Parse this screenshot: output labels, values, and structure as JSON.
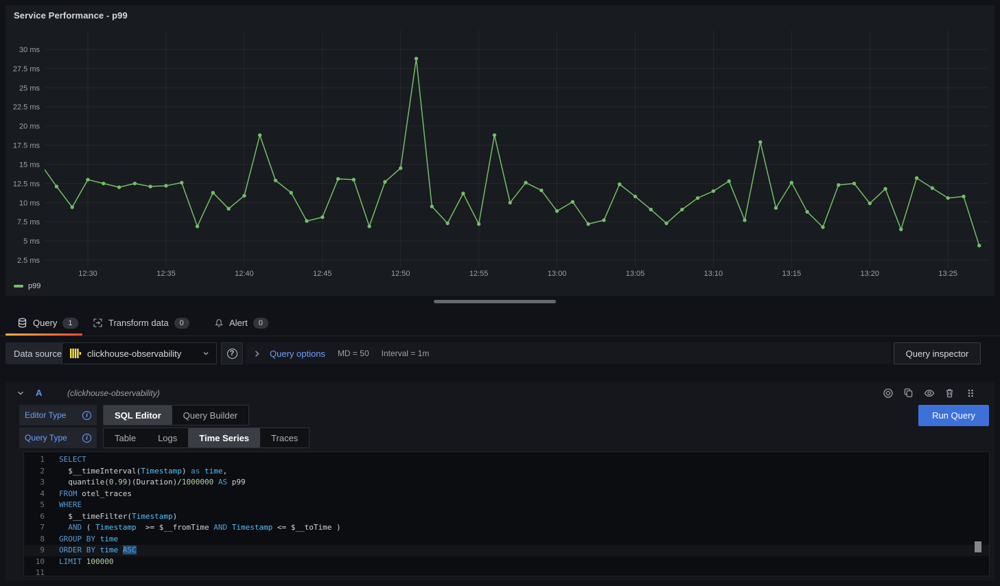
{
  "panel": {
    "title": "Service Performance - p99"
  },
  "chart_data": {
    "type": "line",
    "title": "Service Performance - p99",
    "y_unit": "ms",
    "grid": true,
    "legend_position": "bottom-left",
    "ylim": [
      1.8,
      31.5
    ],
    "y_ticks": [
      2.5,
      5,
      7.5,
      10,
      12.5,
      15,
      17.5,
      20,
      22.5,
      25,
      27.5,
      30
    ],
    "x_tick_labels": [
      "12:30",
      "12:35",
      "12:40",
      "12:45",
      "12:50",
      "12:55",
      "13:00",
      "13:05",
      "13:10",
      "13:15",
      "13:20",
      "13:25"
    ],
    "x": [
      "12:27",
      "12:28",
      "12:29",
      "12:30",
      "12:31",
      "12:32",
      "12:33",
      "12:34",
      "12:35",
      "12:36",
      "12:37",
      "12:38",
      "12:39",
      "12:40",
      "12:41",
      "12:42",
      "12:43",
      "12:44",
      "12:45",
      "12:46",
      "12:47",
      "12:48",
      "12:49",
      "12:50",
      "12:51",
      "12:52",
      "12:53",
      "12:54",
      "12:55",
      "12:56",
      "12:57",
      "12:58",
      "12:59",
      "13:00",
      "13:01",
      "13:02",
      "13:03",
      "13:04",
      "13:05",
      "13:06",
      "13:07",
      "13:08",
      "13:09",
      "13:10",
      "13:11",
      "13:12",
      "13:13",
      "13:14",
      "13:15",
      "13:16",
      "13:17",
      "13:18",
      "13:19",
      "13:20",
      "13:21",
      "13:22",
      "13:23",
      "13:24",
      "13:25",
      "13:26",
      "13:27"
    ],
    "series": [
      {
        "name": "p99",
        "color": "#73BF69",
        "values": [
          15.0,
          12.1,
          9.4,
          13.0,
          12.5,
          12.0,
          12.5,
          12.1,
          12.2,
          12.6,
          6.9,
          11.3,
          9.2,
          10.9,
          18.8,
          12.9,
          11.3,
          7.6,
          8.1,
          13.1,
          13.0,
          6.9,
          12.7,
          14.5,
          28.8,
          9.5,
          7.3,
          11.2,
          7.2,
          18.8,
          10.0,
          12.6,
          11.6,
          8.9,
          10.1,
          7.2,
          7.7,
          12.4,
          10.8,
          9.1,
          7.3,
          9.1,
          10.6,
          11.5,
          12.8,
          7.7,
          17.9,
          9.3,
          12.6,
          8.8,
          6.8,
          12.3,
          12.5,
          9.9,
          11.8,
          6.5,
          13.2,
          11.9,
          10.6,
          10.8,
          4.4
        ]
      }
    ]
  },
  "tabs": [
    {
      "label": "Query",
      "count": "1"
    },
    {
      "label": "Transform data",
      "count": "0"
    },
    {
      "label": "Alert",
      "count": "0"
    }
  ],
  "toolbar": {
    "datasource_label": "Data source",
    "datasource_value": "clickhouse-observability",
    "query_options_label": "Query options",
    "md": "MD = 50",
    "interval": "Interval = 1m",
    "inspector_label": "Query inspector"
  },
  "query_row": {
    "ref_id": "A",
    "datasource_hint": "(clickhouse-observability)"
  },
  "controls": {
    "editor_type_label": "Editor Type",
    "editor_types": [
      "SQL Editor",
      "Query Builder"
    ],
    "editor_type_active": "SQL Editor",
    "query_type_label": "Query Type",
    "query_types": [
      "Table",
      "Logs",
      "Time Series",
      "Traces"
    ],
    "query_type_active": "Time Series",
    "run_label": "Run Query"
  },
  "colors": {
    "accent_blue": "#3D71D9",
    "link_blue": "#6E9FFF",
    "series_green": "#73BF69",
    "tab_active_orange": "#EC4B34",
    "clickhouse_yellow": "#F5E242"
  },
  "sql_editor": {
    "lines": [
      {
        "n": "1",
        "tokens": [
          [
            "SELECT",
            "k"
          ]
        ]
      },
      {
        "n": "2",
        "tokens": [
          [
            "  $__timeInterval(",
            "p"
          ],
          [
            "Timestamp",
            "t"
          ],
          [
            ") ",
            "p"
          ],
          [
            "as",
            "k"
          ],
          [
            " ",
            "p"
          ],
          [
            "time",
            "t"
          ],
          [
            ",",
            "p"
          ]
        ]
      },
      {
        "n": "3",
        "tokens": [
          [
            "  quantile(",
            "p"
          ],
          [
            "0.99",
            "n"
          ],
          [
            ")(Duration)/",
            "p"
          ],
          [
            "1000000",
            "n"
          ],
          [
            " ",
            "p"
          ],
          [
            "AS",
            "k"
          ],
          [
            " p99",
            "p"
          ]
        ]
      },
      {
        "n": "4",
        "tokens": [
          [
            "FROM",
            "k"
          ],
          [
            " otel_traces",
            "p"
          ]
        ]
      },
      {
        "n": "5",
        "tokens": [
          [
            "WHERE",
            "k"
          ]
        ]
      },
      {
        "n": "6",
        "tokens": [
          [
            "  $__timeFilter(",
            "p"
          ],
          [
            "Timestamp",
            "t"
          ],
          [
            ")",
            "p"
          ]
        ]
      },
      {
        "n": "7",
        "tokens": [
          [
            "  ",
            "p"
          ],
          [
            "AND",
            "k"
          ],
          [
            " ( ",
            "p"
          ],
          [
            "Timestamp",
            "t"
          ],
          [
            "  >= $__fromTime ",
            "p"
          ],
          [
            "AND",
            "k"
          ],
          [
            " ",
            "p"
          ],
          [
            "Timestamp",
            "t"
          ],
          [
            " <= $__toTime )",
            "p"
          ]
        ]
      },
      {
        "n": "8",
        "tokens": [
          [
            "GROUP BY",
            "k"
          ],
          [
            " ",
            "p"
          ],
          [
            "time",
            "t"
          ]
        ]
      },
      {
        "n": "9",
        "active": true,
        "tokens": [
          [
            "ORDER BY",
            "k"
          ],
          [
            " ",
            "p"
          ],
          [
            "time",
            "t"
          ],
          [
            " ",
            "p"
          ],
          [
            "ASC",
            "k sel"
          ]
        ]
      },
      {
        "n": "10",
        "tokens": [
          [
            "LIMIT",
            "k"
          ],
          [
            " ",
            "p"
          ],
          [
            "100000",
            "n"
          ]
        ]
      },
      {
        "n": "11",
        "tokens": []
      }
    ]
  }
}
